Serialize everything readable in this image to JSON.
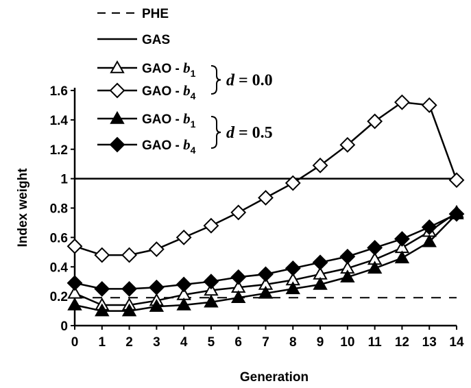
{
  "chart_data": {
    "type": "line",
    "xlabel": "Generation",
    "ylabel": "Index weight",
    "x": [
      0,
      1,
      2,
      3,
      4,
      5,
      6,
      7,
      8,
      9,
      10,
      11,
      12,
      13,
      14
    ],
    "xlim": [
      0,
      14
    ],
    "ylim": [
      0,
      1.6
    ],
    "xticks": [
      "0",
      "1",
      "2",
      "3",
      "4",
      "5",
      "6",
      "7",
      "8",
      "9",
      "10",
      "11",
      "12",
      "13",
      "14"
    ],
    "yticks": [
      "0",
      "0.2",
      "0.4",
      "0.6",
      "0.8",
      "1",
      "1.2",
      "1.4",
      "1.6"
    ],
    "grid": false,
    "legend_position": "top-left",
    "series": [
      {
        "name": "PHE",
        "style": "dashed",
        "marker": "none",
        "values": [
          0.19,
          0.19,
          0.19,
          0.19,
          0.19,
          0.19,
          0.19,
          0.19,
          0.19,
          0.19,
          0.19,
          0.19,
          0.19,
          0.19,
          0.19
        ]
      },
      {
        "name": "GAS",
        "style": "solid",
        "marker": "none",
        "values": [
          1,
          1,
          1,
          1,
          1,
          1,
          1,
          1,
          1,
          1,
          1,
          1,
          1,
          1,
          1
        ]
      },
      {
        "name": "GAO - b",
        "subscript": "1",
        "style": "solid",
        "marker": "triangle-open",
        "values": [
          0.22,
          0.14,
          0.14,
          0.17,
          0.21,
          0.24,
          0.26,
          0.28,
          0.31,
          0.35,
          0.39,
          0.45,
          0.53,
          0.64,
          0.77
        ]
      },
      {
        "name": "GAO - b",
        "subscript": "4",
        "style": "solid",
        "marker": "diamond-open",
        "values": [
          0.54,
          0.48,
          0.48,
          0.52,
          0.6,
          0.68,
          0.77,
          0.87,
          0.97,
          1.09,
          1.23,
          1.39,
          1.52,
          1.5,
          0.99
        ]
      },
      {
        "name": "GAO - b",
        "subscript": "1",
        "style": "solid",
        "marker": "triangle-filled",
        "values": [
          0.14,
          0.1,
          0.1,
          0.13,
          0.14,
          0.16,
          0.19,
          0.22,
          0.25,
          0.28,
          0.33,
          0.39,
          0.46,
          0.57,
          0.76
        ]
      },
      {
        "name": "GAO - b",
        "subscript": "4",
        "style": "solid",
        "marker": "diamond-filled",
        "values": [
          0.29,
          0.25,
          0.25,
          0.26,
          0.28,
          0.3,
          0.33,
          0.35,
          0.39,
          0.43,
          0.47,
          0.53,
          0.59,
          0.67,
          0.76
        ]
      }
    ],
    "annotations": [
      {
        "text_italic": "d",
        "text_rest": " = 0.0",
        "groups_series": [
          2,
          3
        ]
      },
      {
        "text_italic": "d",
        "text_rest": " = 0.5",
        "groups_series": [
          4,
          5
        ]
      }
    ]
  }
}
